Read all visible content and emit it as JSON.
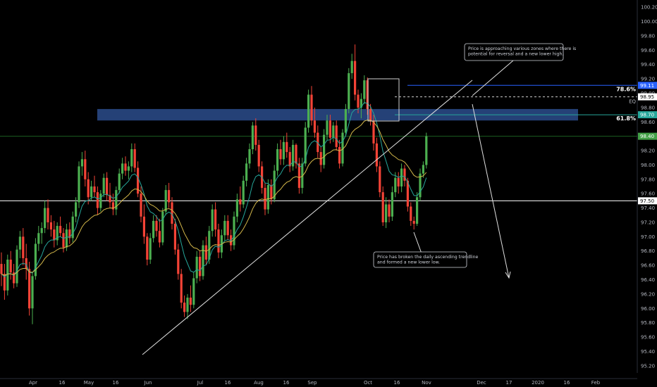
{
  "chart_data": {
    "type": "candlestick",
    "y_axis": {
      "ylim": [
        95.1,
        100.3
      ],
      "ticks": [
        "100.20",
        "100.00",
        "99.80",
        "99.60",
        "99.40",
        "99.20",
        "99.00",
        "98.80",
        "98.60",
        "98.40",
        "98.20",
        "98.00",
        "97.80",
        "97.60",
        "97.40",
        "97.20",
        "97.00",
        "96.80",
        "96.60",
        "96.40",
        "96.20",
        "96.00",
        "95.80",
        "95.60",
        "95.40",
        "95.20"
      ]
    },
    "x_axis": {
      "labels": [
        "Apr",
        "16",
        "May",
        "16",
        "Jun",
        "Jul",
        "16",
        "Aug",
        "16",
        "Sep",
        "Oct",
        "16",
        "Nov",
        "Dec",
        "17",
        "2020",
        "16",
        "Feb"
      ]
    },
    "price_tags": [
      {
        "label": "99.11",
        "value": 99.11,
        "color": "#2962ff"
      },
      {
        "label": "98.95",
        "value": 98.95,
        "color": "#ffffff"
      },
      {
        "label": "98.70",
        "value": 98.7,
        "color": "#26a69a"
      },
      {
        "label": "98.40",
        "value": 98.4,
        "color": "#43a047"
      },
      {
        "label": "97.50",
        "value": 97.5,
        "color": "#ffffff"
      }
    ],
    "fib_labels": [
      {
        "label": "78.6%",
        "value": 99.11
      },
      {
        "label": "61.8%",
        "value": 98.7
      }
    ],
    "eq_label": "EQ",
    "horizontal_lines": [
      {
        "value": 98.4,
        "color": "#1b5e20"
      },
      {
        "value": 97.5,
        "color": "#ffffff"
      }
    ],
    "zones": [
      {
        "y_top": 98.78,
        "y_bottom": 98.62,
        "color": "#2b4c8c"
      }
    ],
    "annotations": [
      {
        "lines": [
          "Price is approaching various zones where there is",
          "potential for reversal and a new lower high."
        ]
      },
      {
        "lines": [
          "Price has broken the daily ascending trendline",
          "and formed a new lower low."
        ]
      }
    ],
    "colors": {
      "up": "#4caf50",
      "down": "#f44336",
      "ema_fast": "#26a69a",
      "ema_slow": "#d4b84a",
      "background": "#000000"
    },
    "candles": [
      [
        96.62,
        96.78,
        96.31,
        96.48
      ],
      [
        96.48,
        96.62,
        96.12,
        96.25
      ],
      [
        96.25,
        96.75,
        96.18,
        96.68
      ],
      [
        96.68,
        96.8,
        96.4,
        96.5
      ],
      [
        96.5,
        96.62,
        96.28,
        96.35
      ],
      [
        96.35,
        96.88,
        96.3,
        96.82
      ],
      [
        96.82,
        97.08,
        96.7,
        97.0
      ],
      [
        97.0,
        97.12,
        96.6,
        96.7
      ],
      [
        96.7,
        96.9,
        96.4,
        96.55
      ],
      [
        96.55,
        96.65,
        95.9,
        96.0
      ],
      [
        96.0,
        96.5,
        95.78,
        96.45
      ],
      [
        96.45,
        96.98,
        96.4,
        96.9
      ],
      [
        96.9,
        97.15,
        96.8,
        97.05
      ],
      [
        97.05,
        97.2,
        96.9,
        97.12
      ],
      [
        97.12,
        97.5,
        97.05,
        97.4
      ],
      [
        97.4,
        97.52,
        97.1,
        97.2
      ],
      [
        97.2,
        97.3,
        97.0,
        97.1
      ],
      [
        97.1,
        97.22,
        96.85,
        96.95
      ],
      [
        96.95,
        97.2,
        96.88,
        97.15
      ],
      [
        97.15,
        97.28,
        97.0,
        97.05
      ],
      [
        97.05,
        97.12,
        96.78,
        96.85
      ],
      [
        96.85,
        97.18,
        96.8,
        97.1
      ],
      [
        97.1,
        97.2,
        96.9,
        96.98
      ],
      [
        96.98,
        97.35,
        96.92,
        97.28
      ],
      [
        97.28,
        97.55,
        97.2,
        97.48
      ],
      [
        97.48,
        98.05,
        97.4,
        97.98
      ],
      [
        97.98,
        98.18,
        97.85,
        98.08
      ],
      [
        98.08,
        98.2,
        97.7,
        97.8
      ],
      [
        97.8,
        97.9,
        97.45,
        97.55
      ],
      [
        97.55,
        97.78,
        97.5,
        97.7
      ],
      [
        97.7,
        97.85,
        97.55,
        97.62
      ],
      [
        97.62,
        97.7,
        97.3,
        97.4
      ],
      [
        97.4,
        97.65,
        97.35,
        97.6
      ],
      [
        97.6,
        97.88,
        97.55,
        97.82
      ],
      [
        97.82,
        97.9,
        97.5,
        97.58
      ],
      [
        97.58,
        97.75,
        97.4,
        97.48
      ],
      [
        97.48,
        97.6,
        97.3,
        97.38
      ],
      [
        97.38,
        97.7,
        97.3,
        97.65
      ],
      [
        97.65,
        97.95,
        97.6,
        97.88
      ],
      [
        97.88,
        98.1,
        97.8,
        98.02
      ],
      [
        98.02,
        98.12,
        97.85,
        97.92
      ],
      [
        97.92,
        98.05,
        97.8,
        97.98
      ],
      [
        97.98,
        98.3,
        97.9,
        98.22
      ],
      [
        98.22,
        98.3,
        97.9,
        97.96
      ],
      [
        97.96,
        98.05,
        97.55,
        97.6
      ],
      [
        97.6,
        97.7,
        97.2,
        97.28
      ],
      [
        97.28,
        97.45,
        96.9,
        97.0
      ],
      [
        97.0,
        97.05,
        96.6,
        96.68
      ],
      [
        96.68,
        97.05,
        96.62,
        96.98
      ],
      [
        96.98,
        97.3,
        96.92,
        97.22
      ],
      [
        97.22,
        97.3,
        97.0,
        97.08
      ],
      [
        97.08,
        97.25,
        96.85,
        96.92
      ],
      [
        96.92,
        97.4,
        96.88,
        97.35
      ],
      [
        97.35,
        97.72,
        97.3,
        97.65
      ],
      [
        97.65,
        97.75,
        97.4,
        97.48
      ],
      [
        97.48,
        97.55,
        97.1,
        97.18
      ],
      [
        97.18,
        97.25,
        96.75,
        96.82
      ],
      [
        96.82,
        96.9,
        96.4,
        96.48
      ],
      [
        96.48,
        96.55,
        96.0,
        96.08
      ],
      [
        96.08,
        96.18,
        95.88,
        95.95
      ],
      [
        95.95,
        96.2,
        95.85,
        96.15
      ],
      [
        96.15,
        96.32,
        95.95,
        96.05
      ],
      [
        96.05,
        96.5,
        96.0,
        96.42
      ],
      [
        96.42,
        96.8,
        96.35,
        96.72
      ],
      [
        96.72,
        96.8,
        96.38,
        96.45
      ],
      [
        96.45,
        96.95,
        96.4,
        96.88
      ],
      [
        96.88,
        97.0,
        96.6,
        96.68
      ],
      [
        96.68,
        97.15,
        96.62,
        97.08
      ],
      [
        97.08,
        97.45,
        97.0,
        97.38
      ],
      [
        97.38,
        97.48,
        97.0,
        97.1
      ],
      [
        97.1,
        97.18,
        96.7,
        96.78
      ],
      [
        96.78,
        97.1,
        96.7,
        97.02
      ],
      [
        97.02,
        97.3,
        96.95,
        97.22
      ],
      [
        97.22,
        97.3,
        96.95,
        97.02
      ],
      [
        97.02,
        97.1,
        96.8,
        96.88
      ],
      [
        96.88,
        97.35,
        96.82,
        97.28
      ],
      [
        97.28,
        97.6,
        97.2,
        97.52
      ],
      [
        97.52,
        97.7,
        97.35,
        97.45
      ],
      [
        97.45,
        97.85,
        97.4,
        97.78
      ],
      [
        97.78,
        98.1,
        97.7,
        98.02
      ],
      [
        98.02,
        98.3,
        97.95,
        98.22
      ],
      [
        98.22,
        98.6,
        98.15,
        98.55
      ],
      [
        98.55,
        98.65,
        98.2,
        98.28
      ],
      [
        98.28,
        98.35,
        97.9,
        97.98
      ],
      [
        97.98,
        98.05,
        97.6,
        97.68
      ],
      [
        97.68,
        97.75,
        97.3,
        97.38
      ],
      [
        97.38,
        97.8,
        97.32,
        97.72
      ],
      [
        97.72,
        97.8,
        97.45,
        97.52
      ],
      [
        97.52,
        98.0,
        97.48,
        97.92
      ],
      [
        97.92,
        98.3,
        97.85,
        98.22
      ],
      [
        98.22,
        98.35,
        98.0,
        98.08
      ],
      [
        98.08,
        98.4,
        98.0,
        98.32
      ],
      [
        98.32,
        98.45,
        98.1,
        98.18
      ],
      [
        98.18,
        98.25,
        97.9,
        97.98
      ],
      [
        97.98,
        98.35,
        97.92,
        98.28
      ],
      [
        98.28,
        98.3,
        97.95,
        98.02
      ],
      [
        98.02,
        98.1,
        97.6,
        97.68
      ],
      [
        97.68,
        98.1,
        97.6,
        98.02
      ],
      [
        98.02,
        98.6,
        97.98,
        98.52
      ],
      [
        98.52,
        99.05,
        98.45,
        98.98
      ],
      [
        98.98,
        99.1,
        98.55,
        98.62
      ],
      [
        98.62,
        98.8,
        98.38,
        98.45
      ],
      [
        98.45,
        98.55,
        98.1,
        98.18
      ],
      [
        98.18,
        98.25,
        97.9,
        98.0
      ],
      [
        98.0,
        98.5,
        97.95,
        98.42
      ],
      [
        98.42,
        98.7,
        98.35,
        98.62
      ],
      [
        98.62,
        98.7,
        98.3,
        98.38
      ],
      [
        98.38,
        98.6,
        98.32,
        98.55
      ],
      [
        98.55,
        98.62,
        98.2,
        98.25
      ],
      [
        98.25,
        98.35,
        97.95,
        98.02
      ],
      [
        98.02,
        98.5,
        97.98,
        98.45
      ],
      [
        98.45,
        98.85,
        98.4,
        98.78
      ],
      [
        98.78,
        99.35,
        98.72,
        99.28
      ],
      [
        99.28,
        99.55,
        99.2,
        99.45
      ],
      [
        99.45,
        99.68,
        98.9,
        98.98
      ],
      [
        98.98,
        99.05,
        98.72,
        98.8
      ],
      [
        98.8,
        99.0,
        98.65,
        98.92
      ],
      [
        98.92,
        99.25,
        98.85,
        99.18
      ],
      [
        99.18,
        99.22,
        98.7,
        98.78
      ],
      [
        98.78,
        98.85,
        98.55,
        98.62
      ],
      [
        98.62,
        98.7,
        98.2,
        98.3
      ],
      [
        98.3,
        98.38,
        97.9,
        97.98
      ],
      [
        97.98,
        98.05,
        97.55,
        97.62
      ],
      [
        97.62,
        97.7,
        97.15,
        97.2
      ],
      [
        97.2,
        97.55,
        97.12,
        97.45
      ],
      [
        97.45,
        97.52,
        97.2,
        97.28
      ],
      [
        97.28,
        97.7,
        97.22,
        97.62
      ],
      [
        97.62,
        97.9,
        97.55,
        97.82
      ],
      [
        97.82,
        97.9,
        97.6,
        97.7
      ],
      [
        97.7,
        98.02,
        97.62,
        97.95
      ],
      [
        97.95,
        98.0,
        97.7,
        97.78
      ],
      [
        97.78,
        97.82,
        97.35,
        97.42
      ],
      [
        97.42,
        97.48,
        97.15,
        97.22
      ],
      [
        97.22,
        97.28,
        97.1,
        97.18
      ],
      [
        97.18,
        97.62,
        97.15,
        97.55
      ],
      [
        97.55,
        97.95,
        97.5,
        97.88
      ],
      [
        97.88,
        98.05,
        97.82,
        98.0
      ],
      [
        98.0,
        98.45,
        97.95,
        98.4
      ]
    ]
  }
}
